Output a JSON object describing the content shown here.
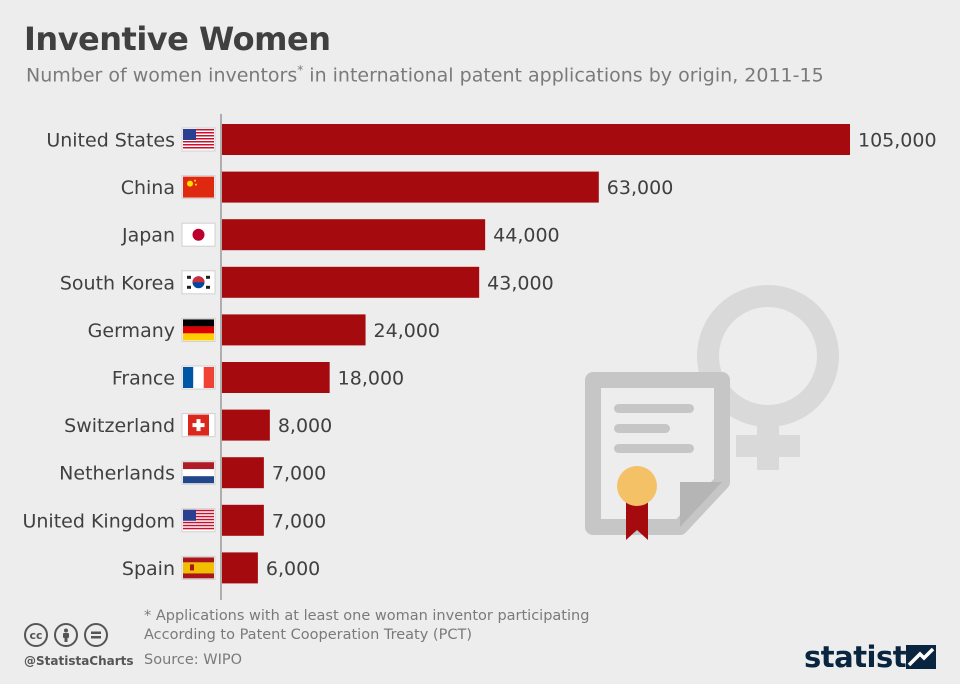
{
  "header": {
    "title": "Inventive Women",
    "subtitle_text": "Number of women inventors",
    "subtitle_marker": "*",
    "subtitle_rest": " in international patent applications by origin, 2011-15"
  },
  "colors": {
    "bar": "#a50b0e",
    "background": "#ededed",
    "text": "#404040",
    "muted": "#7a7a7a",
    "brand": "#0a2540"
  },
  "chart_data": {
    "type": "bar",
    "orientation": "horizontal",
    "categories": [
      "United States",
      "China",
      "Japan",
      "South Korea",
      "Germany",
      "France",
      "Switzerland",
      "Netherlands",
      "United Kingdom",
      "Spain"
    ],
    "values": [
      105000,
      63000,
      44000,
      43000,
      24000,
      18000,
      8000,
      7000,
      7000,
      6000
    ],
    "value_labels": [
      "105,000",
      "63,000",
      "44,000",
      "43,000",
      "24,000",
      "18,000",
      "8,000",
      "7,000",
      "7,000",
      "6,000"
    ],
    "flag_icons": [
      "flag-us-icon",
      "flag-cn-icon",
      "flag-jp-icon",
      "flag-kr-icon",
      "flag-de-icon",
      "flag-fr-icon",
      "flag-ch-icon",
      "flag-nl-icon",
      "flag-us-icon",
      "flag-es-icon"
    ],
    "xlim": [
      0,
      105000
    ],
    "grid": false,
    "legend": "none"
  },
  "footer": {
    "note1": "* Applications with at least one woman inventor participating",
    "note2": "According to Patent Cooperation Treaty (PCT)",
    "source": "Source: WIPO",
    "handle": "@StatistaCharts",
    "brand": "statista",
    "cc_icons": [
      "cc",
      "by",
      "nd"
    ]
  }
}
